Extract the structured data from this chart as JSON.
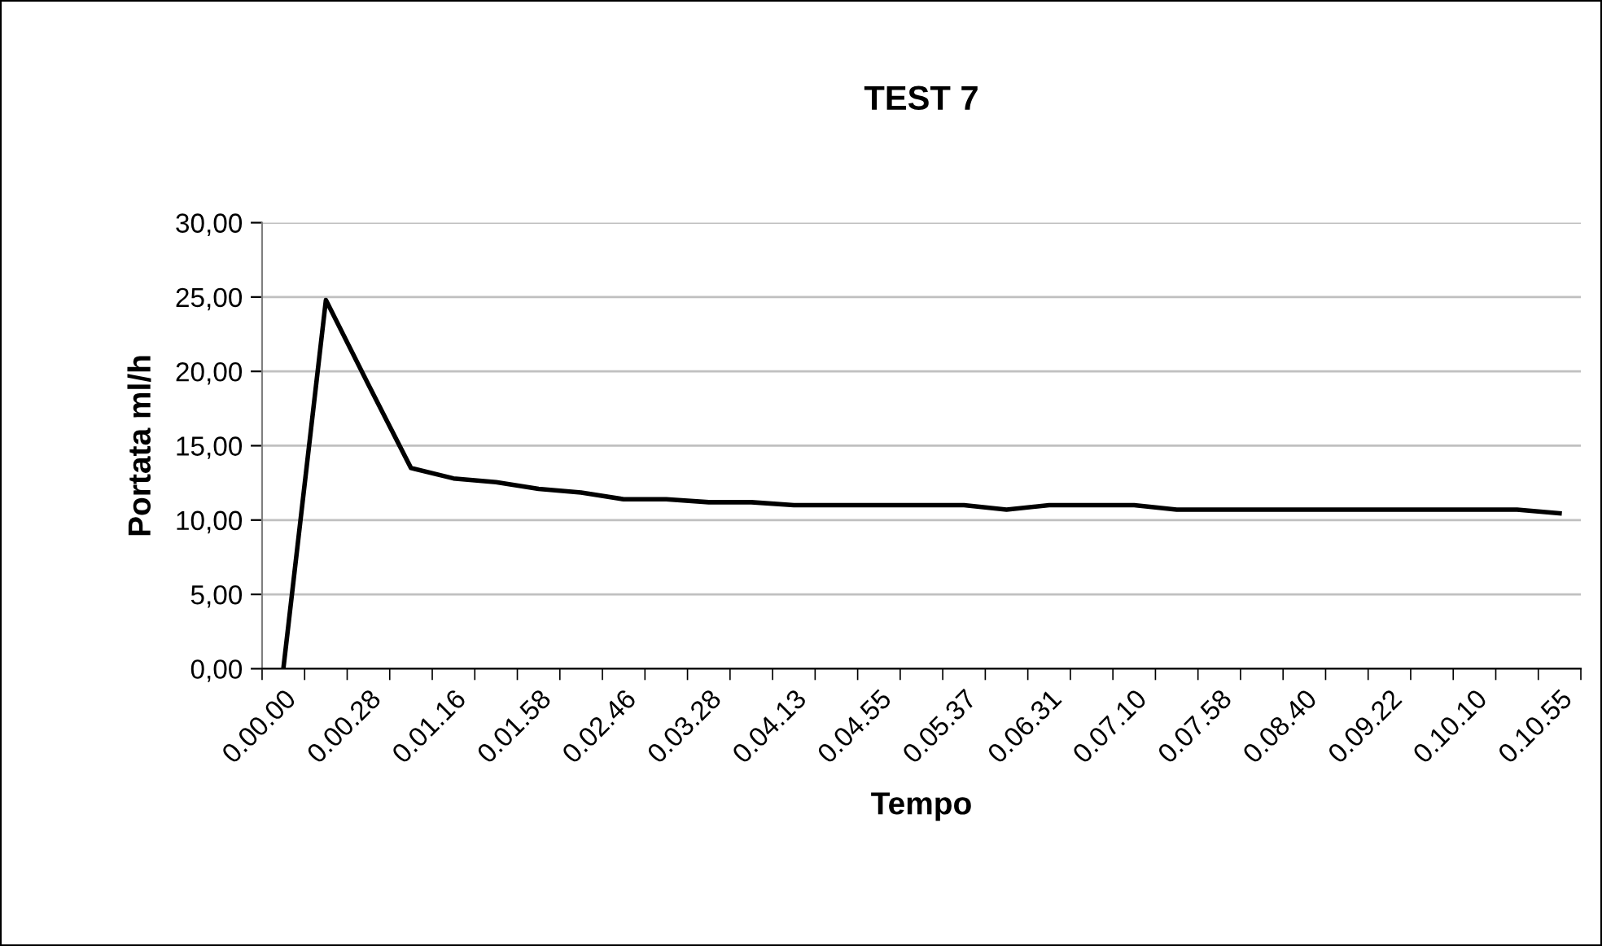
{
  "chart_data": {
    "type": "line",
    "title": "TEST 7",
    "xlabel": "Tempo",
    "ylabel": "Portata ml/h",
    "categories": [
      "0.00.00",
      null,
      "0.00.28",
      null,
      "0.01.16",
      null,
      "0.01.58",
      null,
      "0.02.46",
      null,
      "0.03.28",
      null,
      "0.04.13",
      null,
      "0.04.55",
      null,
      "0.05.37",
      null,
      "0.06.31",
      null,
      "0.07.10",
      null,
      "0.07.58",
      null,
      "0.08.40",
      null,
      "0.09.22",
      null,
      "0.10.10",
      null,
      "0.10.55"
    ],
    "series": [
      {
        "color": "#000000",
        "values": [
          0,
          24.8,
          19.1,
          13.5,
          12.8,
          12.55,
          12.1,
          11.85,
          11.4,
          11.4,
          11.2,
          11.2,
          11.0,
          11.0,
          11.0,
          11.0,
          11.0,
          10.7,
          11.0,
          11.0,
          11.0,
          10.7,
          10.7,
          10.7,
          10.7,
          10.7,
          10.7,
          10.7,
          10.7,
          10.7,
          10.45
        ]
      }
    ],
    "ylim": [
      0,
      30
    ],
    "yticks": [
      {
        "value": 0,
        "label": "0,00"
      },
      {
        "value": 5,
        "label": "5,00"
      },
      {
        "value": 10,
        "label": "10,00"
      },
      {
        "value": 15,
        "label": "15,00"
      },
      {
        "value": 20,
        "label": "20,00"
      },
      {
        "value": 25,
        "label": "25,00"
      },
      {
        "value": 30,
        "label": "30,00"
      }
    ],
    "grid": "y"
  }
}
